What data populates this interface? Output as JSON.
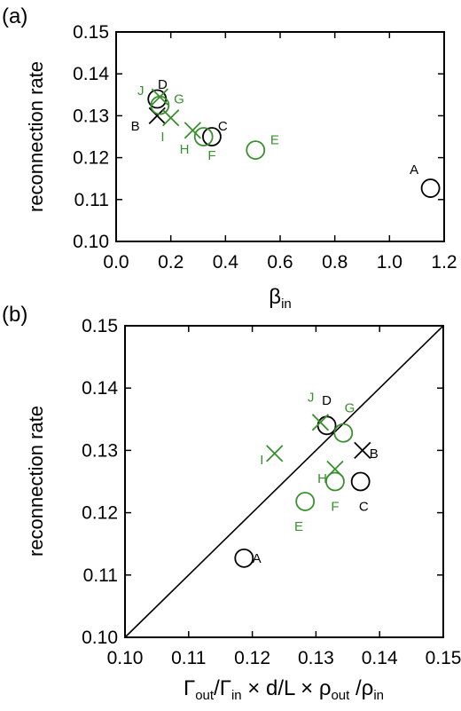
{
  "colors": {
    "black": "#000000",
    "green": "#3a8f2e"
  },
  "panels": {
    "a": {
      "label": "(a)"
    },
    "b": {
      "label": "(b)"
    }
  },
  "chart_data": [
    {
      "type": "scatter",
      "panel": "(a)",
      "title": "",
      "ylabel": "reconnection rate",
      "xlabel": {
        "main": "β",
        "sub": "in"
      },
      "xlim": [
        0.0,
        1.2
      ],
      "ylim": [
        0.1,
        0.15
      ],
      "xticks": [
        "0.0",
        "0.2",
        "0.4",
        "0.6",
        "0.8",
        "1.0",
        "1.2"
      ],
      "yticks": [
        "0.10",
        "0.11",
        "0.12",
        "0.13",
        "0.14",
        "0.15"
      ],
      "grid": false,
      "points": [
        {
          "label": "A",
          "x": 1.15,
          "y": 0.1127,
          "marker": "circle",
          "color": "black",
          "lx": -0.06,
          "ly": 0.0045
        },
        {
          "label": "B",
          "x": 0.15,
          "y": 0.13,
          "marker": "cross",
          "color": "black",
          "lx": -0.08,
          "ly": -0.0025
        },
        {
          "label": "C",
          "x": 0.35,
          "y": 0.125,
          "marker": "circle",
          "color": "black",
          "lx": 0.04,
          "ly": 0.0025
        },
        {
          "label": "D",
          "x": 0.15,
          "y": 0.134,
          "marker": "circle",
          "color": "black",
          "lx": 0.02,
          "ly": 0.0035
        },
        {
          "label": "E",
          "x": 0.51,
          "y": 0.1218,
          "marker": "circle",
          "color": "green",
          "lx": 0.07,
          "ly": 0.0025
        },
        {
          "label": "F",
          "x": 0.32,
          "y": 0.125,
          "marker": "circle",
          "color": "green",
          "lx": 0.03,
          "ly": -0.0045
        },
        {
          "label": "G",
          "x": 0.16,
          "y": 0.1325,
          "marker": "circle",
          "color": "green",
          "lx": 0.07,
          "ly": 0.0015
        },
        {
          "label": "H",
          "x": 0.28,
          "y": 0.1265,
          "marker": "cross",
          "color": "green",
          "lx": -0.03,
          "ly": -0.0045
        },
        {
          "label": "I",
          "x": 0.2,
          "y": 0.1295,
          "marker": "cross",
          "color": "green",
          "lx": -0.03,
          "ly": -0.0045
        },
        {
          "label": "J",
          "x": 0.16,
          "y": 0.1345,
          "marker": "cross",
          "color": "green",
          "lx": -0.07,
          "ly": 0.0015
        }
      ]
    },
    {
      "type": "scatter",
      "panel": "(b)",
      "title": "",
      "ylabel": "reconnection rate",
      "xlabel": {
        "t1": "Γ",
        "s1": "out",
        "t2": "/Γ",
        "s2": "in",
        "t3": " × d/L  ×  ρ",
        "s3": "out",
        "t4": " /ρ",
        "s4": "in"
      },
      "xlim": [
        0.1,
        0.15
      ],
      "ylim": [
        0.1,
        0.15
      ],
      "xticks": [
        "0.10",
        "0.11",
        "0.12",
        "0.13",
        "0.14",
        "0.15"
      ],
      "yticks": [
        "0.10",
        "0.11",
        "0.12",
        "0.13",
        "0.14",
        "0.15"
      ],
      "grid": false,
      "reference_line": {
        "from": [
          0.1,
          0.1
        ],
        "to": [
          0.15,
          0.15
        ]
      },
      "points": [
        {
          "label": "A",
          "x": 0.1187,
          "y": 0.1127,
          "marker": "circle",
          "color": "black",
          "lx": 0.002,
          "ly": 0.0
        },
        {
          "label": "B",
          "x": 0.1373,
          "y": 0.13,
          "marker": "cross",
          "color": "black",
          "lx": 0.0018,
          "ly": -0.0005
        },
        {
          "label": "C",
          "x": 0.137,
          "y": 0.125,
          "marker": "circle",
          "color": "black",
          "lx": 0.0005,
          "ly": -0.004
        },
        {
          "label": "D",
          "x": 0.1317,
          "y": 0.134,
          "marker": "circle",
          "color": "black",
          "lx": 0.0,
          "ly": 0.004
        },
        {
          "label": "E",
          "x": 0.1283,
          "y": 0.1218,
          "marker": "circle",
          "color": "green",
          "lx": -0.001,
          "ly": -0.004
        },
        {
          "label": "F",
          "x": 0.133,
          "y": 0.125,
          "marker": "circle",
          "color": "green",
          "lx": 0.0,
          "ly": -0.004
        },
        {
          "label": "G",
          "x": 0.1343,
          "y": 0.1328,
          "marker": "circle",
          "color": "green",
          "lx": 0.001,
          "ly": 0.004
        },
        {
          "label": "H",
          "x": 0.133,
          "y": 0.127,
          "marker": "cross",
          "color": "green",
          "lx": -0.002,
          "ly": -0.0015
        },
        {
          "label": "I",
          "x": 0.1235,
          "y": 0.1295,
          "marker": "cross",
          "color": "green",
          "lx": -0.002,
          "ly": -0.001
        },
        {
          "label": "J",
          "x": 0.1307,
          "y": 0.1345,
          "marker": "cross",
          "color": "green",
          "lx": -0.0015,
          "ly": 0.004
        }
      ]
    }
  ]
}
